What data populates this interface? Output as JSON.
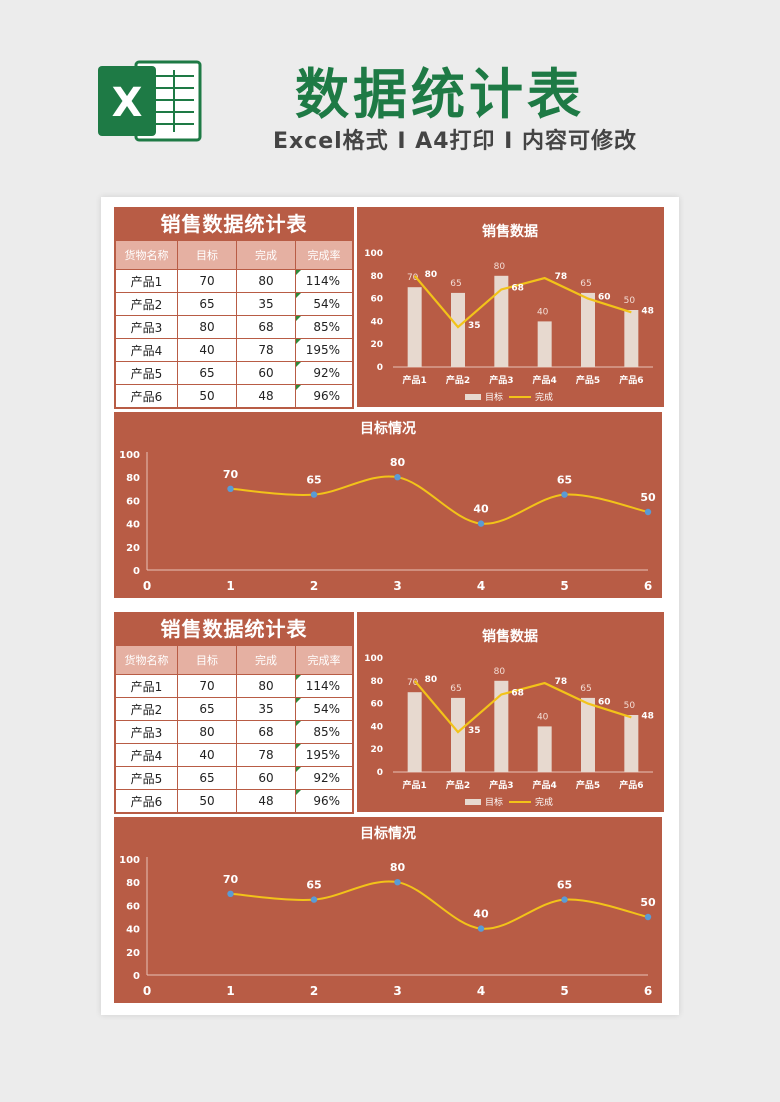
{
  "header": {
    "title": "数据统计表",
    "subtitle": "Excel格式 I A4打印 I 内容可修改",
    "logo_letter": "X"
  },
  "colors": {
    "panel": "#b85c45",
    "table_header": "#e5b0a2",
    "bar": "#e7d9cf",
    "line": "#f2c319",
    "point": "#5a9bd5",
    "title_green": "#1e7a45"
  },
  "table": {
    "title": "销售数据统计表",
    "columns": [
      "货物名称",
      "目标",
      "完成",
      "完成率"
    ],
    "rows": [
      [
        "产品1",
        "70",
        "80",
        "114%"
      ],
      [
        "产品2",
        "65",
        "35",
        "54%"
      ],
      [
        "产品3",
        "80",
        "68",
        "85%"
      ],
      [
        "产品4",
        "40",
        "78",
        "195%"
      ],
      [
        "产品5",
        "65",
        "60",
        "92%"
      ],
      [
        "产品6",
        "50",
        "48",
        "96%"
      ]
    ]
  },
  "chart_data": [
    {
      "type": "bar",
      "title": "销售数据",
      "categories": [
        "产品1",
        "产品2",
        "产品3",
        "产品4",
        "产品5",
        "产品6"
      ],
      "series": [
        {
          "name": "目标",
          "type": "bar",
          "values": [
            70,
            65,
            80,
            40,
            65,
            50
          ]
        },
        {
          "name": "完成",
          "type": "line",
          "values": [
            80,
            35,
            68,
            78,
            60,
            48
          ]
        }
      ],
      "ylim": [
        0,
        100
      ],
      "yticks": [
        0,
        20,
        40,
        60,
        80,
        100
      ],
      "legend": "bottom"
    },
    {
      "type": "line",
      "title": "目标情况",
      "x": [
        1,
        2,
        3,
        4,
        5,
        6
      ],
      "values": [
        70,
        65,
        80,
        40,
        65,
        50
      ],
      "xlim": [
        0,
        6
      ],
      "ylim": [
        0,
        100
      ],
      "xticks": [
        0,
        1,
        2,
        3,
        4,
        5,
        6
      ],
      "yticks": [
        0,
        20,
        40,
        60,
        80,
        100
      ],
      "smooth": true,
      "legend": "none"
    }
  ]
}
